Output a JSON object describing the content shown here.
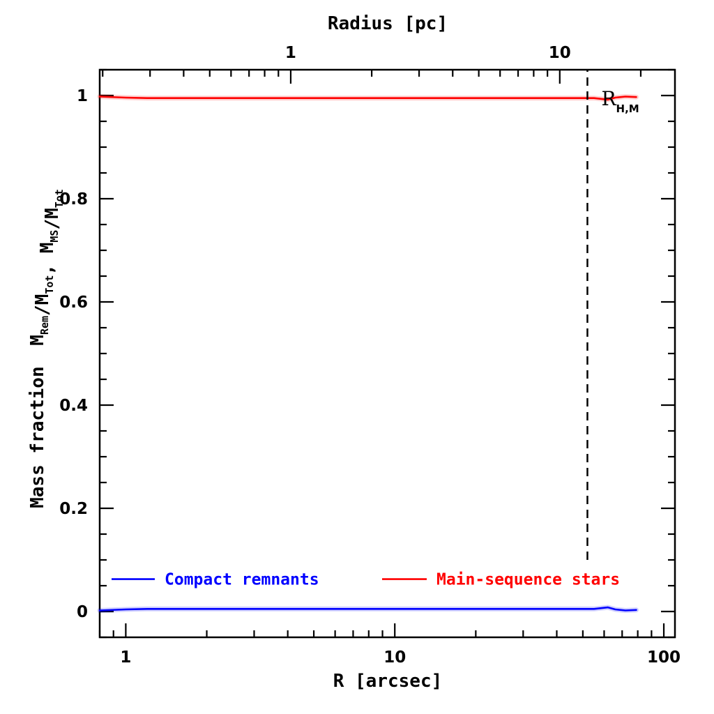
{
  "chart_data": {
    "type": "line",
    "title": "",
    "xlabel": "R [arcsec]",
    "x2label": "Radius [pc]",
    "ylabel": {
      "prefix": "Mass fraction",
      "terms": [
        {
          "main": "M",
          "sub": "Rem"
        },
        {
          "main": "/M",
          "sub": "Tot"
        },
        {
          "main": ", M",
          "sub": "MS"
        },
        {
          "main": "/M",
          "sub": "Tot"
        }
      ]
    },
    "xscale": "log",
    "xlim": [
      0.8,
      110
    ],
    "x2lim": [
      0.195,
      26.8
    ],
    "ylim": [
      -0.05,
      1.05
    ],
    "xticks": [
      1,
      10,
      100
    ],
    "xtick_labels": [
      "1",
      "10",
      "100"
    ],
    "x2ticks": [
      1,
      10
    ],
    "x2tick_labels": [
      "1",
      "10"
    ],
    "yticks": [
      0,
      0.2,
      0.4,
      0.6,
      0.8,
      1
    ],
    "ytick_labels": [
      "0",
      "0.2",
      "0.4",
      "0.6",
      "0.8",
      "1"
    ],
    "series": [
      {
        "name": "Compact remnants",
        "color": "#0000ff",
        "x": [
          0.8,
          1.0,
          1.2,
          2,
          5,
          10,
          20,
          40,
          55,
          62,
          66,
          72,
          79
        ],
        "y": [
          0.002,
          0.004,
          0.005,
          0.005,
          0.005,
          0.005,
          0.005,
          0.005,
          0.005,
          0.008,
          0.004,
          0.002,
          0.003
        ]
      },
      {
        "name": "Main-sequence stars",
        "color": "#ff0000",
        "x": [
          0.8,
          1.0,
          1.2,
          2,
          5,
          10,
          20,
          40,
          55,
          62,
          66,
          72,
          79
        ],
        "y": [
          0.998,
          0.996,
          0.995,
          0.995,
          0.995,
          0.995,
          0.995,
          0.995,
          0.995,
          0.992,
          0.996,
          0.998,
          0.997
        ]
      }
    ],
    "vline": {
      "x": 52,
      "ymin": 0.1,
      "ymax": 1.05,
      "style": "dashed",
      "color": "#000000"
    },
    "annotation": {
      "text": "R",
      "sub": "H,M"
    },
    "legend": {
      "placement": "bottom"
    },
    "grid": false
  }
}
